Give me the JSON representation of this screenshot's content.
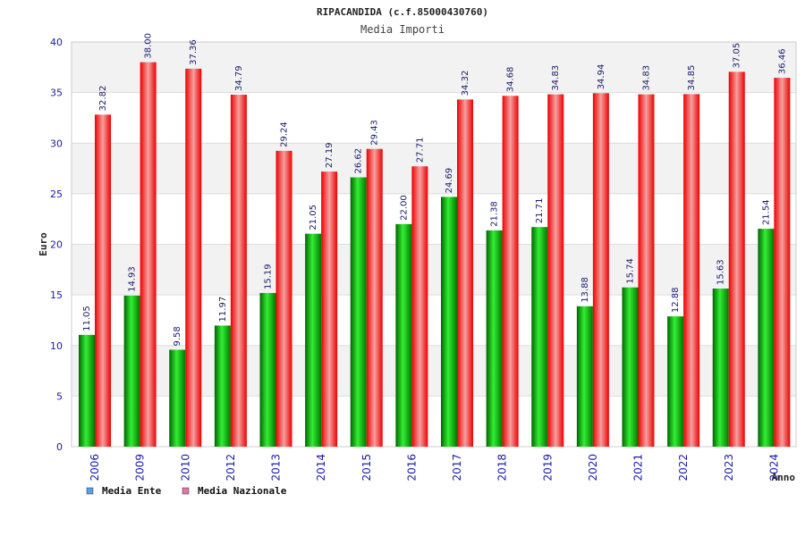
{
  "chart_data": {
    "type": "bar",
    "title": "RIPACANDIDA (c.f.85000430760)",
    "subtitle": "Media Importi",
    "ylabel": "Euro",
    "xlabel": "Anno",
    "ylim": [
      0,
      40
    ],
    "yticks": [
      "0",
      "5",
      "10",
      "15",
      "20",
      "25",
      "30",
      "35",
      "40"
    ],
    "categories": [
      "2006",
      "2009",
      "2010",
      "2012",
      "2013",
      "2014",
      "2015",
      "2016",
      "2017",
      "2018",
      "2019",
      "2020",
      "2021",
      "2022",
      "2023",
      "2024"
    ],
    "series": [
      {
        "name": "Media Ente",
        "color": "#00aa00",
        "legend_color": "#5aa0e6",
        "values": [
          11.05,
          14.93,
          9.58,
          11.97,
          15.19,
          21.05,
          26.62,
          22.0,
          24.69,
          21.38,
          21.71,
          13.88,
          15.74,
          12.88,
          15.63,
          21.54
        ],
        "labels": [
          "11.05",
          "14.93",
          "9.58",
          "11.97",
          "15.19",
          "21.05",
          "26.62",
          "22.00",
          "24.69",
          "21.38",
          "21.71",
          "13.88",
          "15.74",
          "12.88",
          "15.63",
          "21.54"
        ]
      },
      {
        "name": "Media Nazionale",
        "color": "#ee1111",
        "legend_color": "#d97aa6",
        "values": [
          32.82,
          38.0,
          37.36,
          34.79,
          29.24,
          27.19,
          29.43,
          27.71,
          34.32,
          34.68,
          34.83,
          34.94,
          34.83,
          34.85,
          37.05,
          36.46
        ],
        "labels": [
          "32.82",
          "38.00",
          "37.36",
          "34.79",
          "29.24",
          "27.19",
          "29.43",
          "27.71",
          "34.32",
          "34.68",
          "34.83",
          "34.94",
          "34.83",
          "34.85",
          "37.05",
          "36.46"
        ]
      }
    ],
    "grid": true,
    "legend_position": "bottom-left"
  }
}
